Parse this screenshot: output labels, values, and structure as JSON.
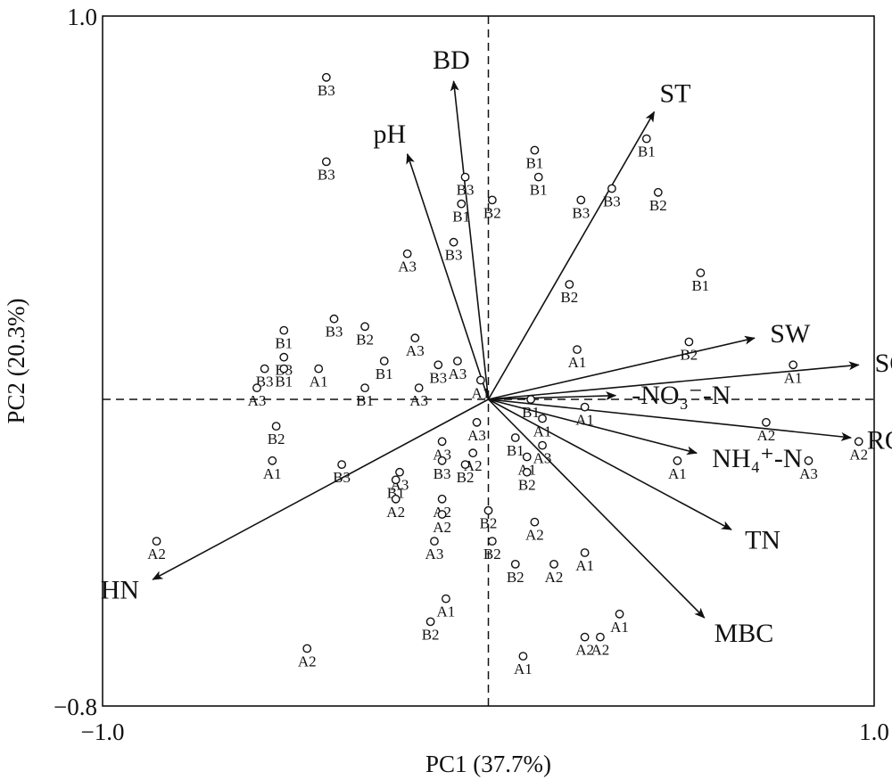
{
  "chart_data": {
    "type": "scatter",
    "title": "",
    "xlabel": "PC1 (37.7%)",
    "ylabel": "PC2 (20.3%)",
    "xlim": [
      -1.0,
      1.0
    ],
    "ylim": [
      -0.8,
      1.0
    ],
    "xtick_labels": [
      {
        "value": -1.0,
        "label": "−1.0"
      },
      {
        "value": 1.0,
        "label": "1.0"
      }
    ],
    "ytick_labels": [
      {
        "value": -0.8,
        "label": "−0.8"
      },
      {
        "value": 1.0,
        "label": "1.0"
      }
    ],
    "zero_lines": true,
    "grid": false,
    "vectors": [
      {
        "name": "BD",
        "x": -0.09,
        "y": 0.83
      },
      {
        "name": "pH",
        "x": -0.21,
        "y": 0.64
      },
      {
        "name": "ST",
        "x": 0.43,
        "y": 0.75
      },
      {
        "name": "SW",
        "x": 0.69,
        "y": 0.16
      },
      {
        "name": "SOC",
        "x": 0.96,
        "y": 0.09
      },
      {
        "name": "-NO₃⁻-N",
        "x": 0.33,
        "y": 0.01
      },
      {
        "name": "ROC",
        "x": 0.94,
        "y": -0.1
      },
      {
        "name": "NH₄⁺-N",
        "x": 0.54,
        "y": -0.14
      },
      {
        "name": "TN",
        "x": 0.63,
        "y": -0.34
      },
      {
        "name": "MBC",
        "x": 0.56,
        "y": -0.57
      },
      {
        "name": "HN",
        "x": -0.87,
        "y": -0.47
      }
    ],
    "points": [
      {
        "label": "B3",
        "x": -0.42,
        "y": 0.84
      },
      {
        "label": "B3",
        "x": -0.42,
        "y": 0.62
      },
      {
        "label": "B3",
        "x": -0.06,
        "y": 0.58
      },
      {
        "label": "B1",
        "x": -0.07,
        "y": 0.51
      },
      {
        "label": "B3",
        "x": -0.09,
        "y": 0.41
      },
      {
        "label": "B2",
        "x": 0.01,
        "y": 0.52
      },
      {
        "label": "B1",
        "x": 0.12,
        "y": 0.65
      },
      {
        "label": "B1",
        "x": 0.13,
        "y": 0.58
      },
      {
        "label": "B3",
        "x": 0.24,
        "y": 0.52
      },
      {
        "label": "B3",
        "x": 0.32,
        "y": 0.55
      },
      {
        "label": "B1",
        "x": 0.41,
        "y": 0.68
      },
      {
        "label": "B2",
        "x": 0.44,
        "y": 0.54
      },
      {
        "label": "A3",
        "x": -0.21,
        "y": 0.38
      },
      {
        "label": "B2",
        "x": 0.21,
        "y": 0.3
      },
      {
        "label": "B1",
        "x": 0.55,
        "y": 0.33
      },
      {
        "label": "B3",
        "x": -0.4,
        "y": 0.21
      },
      {
        "label": "B1",
        "x": -0.53,
        "y": 0.18
      },
      {
        "label": "B2",
        "x": -0.32,
        "y": 0.19
      },
      {
        "label": "A3",
        "x": -0.19,
        "y": 0.16
      },
      {
        "label": "A3",
        "x": -0.08,
        "y": 0.1
      },
      {
        "label": "B3",
        "x": -0.53,
        "y": 0.11
      },
      {
        "label": "B3",
        "x": -0.58,
        "y": 0.08
      },
      {
        "label": "A1",
        "x": -0.44,
        "y": 0.08
      },
      {
        "label": "B1",
        "x": -0.27,
        "y": 0.1
      },
      {
        "label": "B3",
        "x": -0.13,
        "y": 0.09
      },
      {
        "label": "B1",
        "x": -0.53,
        "y": 0.08
      },
      {
        "label": "A3",
        "x": -0.6,
        "y": 0.03
      },
      {
        "label": "B1",
        "x": -0.32,
        "y": 0.03
      },
      {
        "label": "A3",
        "x": -0.18,
        "y": 0.03
      },
      {
        "label": "A1",
        "x": -0.02,
        "y": 0.05
      },
      {
        "label": "A1",
        "x": 0.23,
        "y": 0.13
      },
      {
        "label": "B2",
        "x": 0.52,
        "y": 0.15
      },
      {
        "label": "A1",
        "x": 0.79,
        "y": 0.09
      },
      {
        "label": "B1",
        "x": 0.11,
        "y": 0.0
      },
      {
        "label": "A1",
        "x": 0.25,
        "y": -0.02
      },
      {
        "label": "A1",
        "x": 0.14,
        "y": -0.05
      },
      {
        "label": "A2",
        "x": 0.72,
        "y": -0.06
      },
      {
        "label": "A2",
        "x": 0.96,
        "y": -0.11
      },
      {
        "label": "A3",
        "x": 0.83,
        "y": -0.16
      },
      {
        "label": "A1",
        "x": 0.49,
        "y": -0.16
      },
      {
        "label": "B2",
        "x": -0.55,
        "y": -0.07
      },
      {
        "label": "A1",
        "x": -0.56,
        "y": -0.16
      },
      {
        "label": "B3",
        "x": -0.38,
        "y": -0.17
      },
      {
        "label": "A3",
        "x": -0.03,
        "y": -0.06
      },
      {
        "label": "B1",
        "x": 0.07,
        "y": -0.1
      },
      {
        "label": "A3",
        "x": -0.12,
        "y": -0.11
      },
      {
        "label": "A2",
        "x": -0.04,
        "y": -0.14
      },
      {
        "label": "B2",
        "x": -0.06,
        "y": -0.17
      },
      {
        "label": "B3",
        "x": -0.12,
        "y": -0.16
      },
      {
        "label": "A1",
        "x": 0.1,
        "y": -0.15
      },
      {
        "label": "A3",
        "x": 0.14,
        "y": -0.12
      },
      {
        "label": "B2",
        "x": 0.1,
        "y": -0.19
      },
      {
        "label": "A3",
        "x": -0.23,
        "y": -0.19
      },
      {
        "label": "B1",
        "x": -0.24,
        "y": -0.21
      },
      {
        "label": "A2",
        "x": -0.24,
        "y": -0.26
      },
      {
        "label": "A2",
        "x": -0.12,
        "y": -0.26
      },
      {
        "label": "A2",
        "x": -0.12,
        "y": -0.3
      },
      {
        "label": "B2",
        "x": 0.0,
        "y": -0.29
      },
      {
        "label": "A2",
        "x": 0.12,
        "y": -0.32
      },
      {
        "label": "A2",
        "x": -0.86,
        "y": -0.37
      },
      {
        "label": "A3",
        "x": -0.14,
        "y": -0.37
      },
      {
        "label": "B2",
        "x": 0.01,
        "y": -0.37
      },
      {
        "label": "B2",
        "x": 0.07,
        "y": -0.43
      },
      {
        "label": "A2",
        "x": 0.17,
        "y": -0.43
      },
      {
        "label": "A1",
        "x": 0.25,
        "y": -0.4
      },
      {
        "label": "A1",
        "x": -0.11,
        "y": -0.52
      },
      {
        "label": "B2",
        "x": -0.15,
        "y": -0.58
      },
      {
        "label": "A1",
        "x": 0.34,
        "y": -0.56
      },
      {
        "label": "A2",
        "x": 0.25,
        "y": -0.62
      },
      {
        "label": "A2",
        "x": 0.29,
        "y": -0.62
      },
      {
        "label": "A2",
        "x": -0.47,
        "y": -0.65
      },
      {
        "label": "A1",
        "x": 0.09,
        "y": -0.67
      }
    ]
  }
}
